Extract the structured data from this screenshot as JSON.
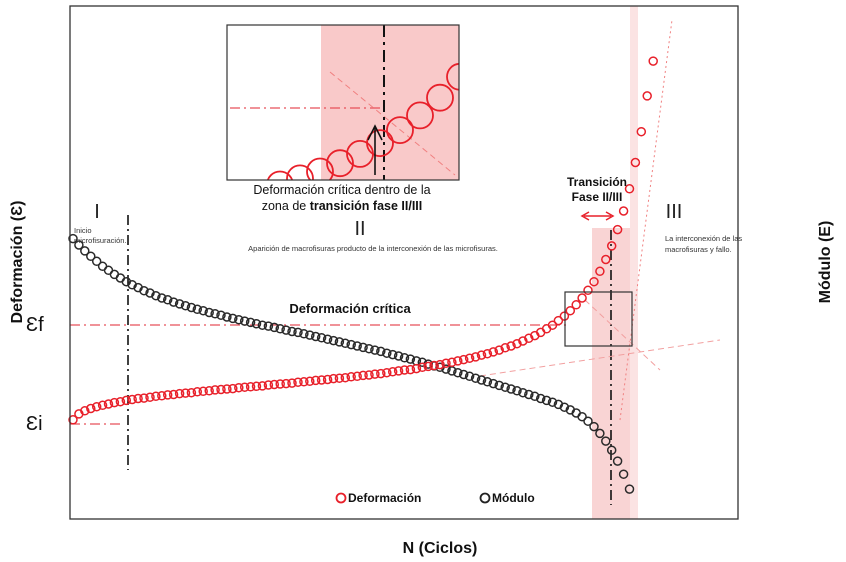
{
  "chart_data": {
    "type": "scatter",
    "xlabel": "N (Ciclos)",
    "ylabel_left": "Deformación (Ɛ)",
    "ylabel_right": "Módulo (E)",
    "x_range": [
      0,
      100
    ],
    "y_range": [
      0,
      100
    ],
    "eps_f_label": "Ɛf",
    "eps_i_label": "Ɛi",
    "eps_f_level": 60,
    "eps_i_level": 25,
    "critical_strain_label": "Deformación crítica",
    "phases": [
      {
        "numeral": "I",
        "note": "Inicio\nmicrofisuración."
      },
      {
        "numeral": "II",
        "note": "Aparición de macrofisuras producto de la interconexión de las microfisuras."
      },
      {
        "numeral": "III",
        "note": "La interconexión de las\nmacrofisuras y fallo."
      }
    ],
    "transition_label": "Transición\nFase II/III",
    "inset_caption_lines": [
      [
        "Deformación crítica dentro de la",
        ""
      ],
      [
        "zona de ",
        "transición fase II/III"
      ]
    ],
    "legend": [
      "Deformación",
      "Módulo"
    ],
    "colors": {
      "deformacion": "#e8202a",
      "modulo": "#2a2a2a",
      "zone": "#f9c9c9"
    },
    "series": [
      {
        "name": "Deformación",
        "points": [
          [
            0.0,
            18.8
          ],
          [
            1.0,
            20.1
          ],
          [
            2.0,
            20.8
          ],
          [
            3.0,
            21.3
          ],
          [
            4.0,
            21.7
          ],
          [
            5.0,
            22.0
          ],
          [
            6.0,
            22.3
          ],
          [
            7.0,
            22.6
          ],
          [
            8.0,
            22.8
          ],
          [
            9.0,
            23.1
          ],
          [
            10.0,
            23.3
          ],
          [
            11.0,
            23.5
          ],
          [
            12.0,
            23.6
          ],
          [
            13.0,
            23.8
          ],
          [
            14.0,
            24.0
          ],
          [
            15.0,
            24.1
          ],
          [
            16.0,
            24.3
          ],
          [
            17.0,
            24.4
          ],
          [
            18.0,
            24.6
          ],
          [
            19.0,
            24.7
          ],
          [
            20.0,
            24.8
          ],
          [
            21.0,
            25.0
          ],
          [
            22.0,
            25.1
          ],
          [
            23.0,
            25.2
          ],
          [
            24.0,
            25.4
          ],
          [
            25.0,
            25.5
          ],
          [
            26.0,
            25.6
          ],
          [
            27.0,
            25.7
          ],
          [
            28.0,
            25.9
          ],
          [
            29.0,
            26.0
          ],
          [
            30.0,
            26.1
          ],
          [
            31.0,
            26.2
          ],
          [
            32.0,
            26.3
          ],
          [
            33.0,
            26.5
          ],
          [
            34.0,
            26.6
          ],
          [
            35.0,
            26.7
          ],
          [
            36.0,
            26.8
          ],
          [
            37.0,
            26.9
          ],
          [
            38.0,
            27.1
          ],
          [
            39.0,
            27.2
          ],
          [
            40.0,
            27.3
          ],
          [
            41.0,
            27.5
          ],
          [
            42.0,
            27.6
          ],
          [
            43.0,
            27.7
          ],
          [
            44.0,
            27.9
          ],
          [
            45.0,
            28.0
          ],
          [
            46.0,
            28.1
          ],
          [
            47.0,
            28.3
          ],
          [
            48.0,
            28.4
          ],
          [
            49.0,
            28.6
          ],
          [
            50.0,
            28.7
          ],
          [
            51.0,
            28.9
          ],
          [
            52.0,
            29.0
          ],
          [
            53.0,
            29.2
          ],
          [
            54.0,
            29.4
          ],
          [
            55.0,
            29.6
          ],
          [
            56.0,
            29.8
          ],
          [
            57.0,
            29.9
          ],
          [
            58.0,
            30.1
          ],
          [
            59.0,
            30.4
          ],
          [
            60.0,
            30.6
          ],
          [
            61.0,
            30.8
          ],
          [
            62.0,
            31.0
          ],
          [
            63.0,
            31.3
          ],
          [
            64.0,
            31.5
          ],
          [
            65.0,
            31.8
          ],
          [
            66.0,
            32.1
          ],
          [
            67.0,
            32.4
          ],
          [
            68.0,
            32.7
          ],
          [
            69.0,
            33.1
          ],
          [
            70.0,
            33.4
          ],
          [
            71.0,
            33.8
          ],
          [
            72.0,
            34.2
          ],
          [
            73.0,
            34.7
          ],
          [
            74.0,
            35.1
          ],
          [
            75.0,
            35.6
          ],
          [
            76.0,
            36.2
          ],
          [
            77.0,
            36.8
          ],
          [
            78.0,
            37.4
          ],
          [
            79.0,
            38.1
          ],
          [
            80.0,
            38.9
          ],
          [
            81.0,
            39.7
          ],
          [
            82.0,
            40.7
          ],
          [
            83.0,
            41.7
          ],
          [
            84.0,
            42.9
          ],
          [
            85.0,
            44.2
          ],
          [
            86.0,
            45.7
          ],
          [
            87.0,
            47.4
          ],
          [
            88.0,
            49.3
          ],
          [
            89.0,
            51.6
          ],
          [
            90.0,
            54.2
          ],
          [
            91.0,
            57.2
          ],
          [
            92.0,
            60.8
          ],
          [
            93.0,
            64.9
          ],
          [
            94.0,
            69.8
          ],
          [
            95.0,
            75.6
          ],
          [
            96.0,
            82.4
          ],
          [
            97.0,
            90.3
          ],
          [
            98.0,
            98.0
          ]
        ]
      },
      {
        "name": "Módulo",
        "points": [
          [
            0.0,
            58.8
          ],
          [
            1.0,
            57.4
          ],
          [
            2.0,
            56.1
          ],
          [
            3.0,
            54.9
          ],
          [
            4.0,
            53.8
          ],
          [
            5.0,
            52.7
          ],
          [
            6.0,
            51.8
          ],
          [
            7.0,
            50.9
          ],
          [
            8.0,
            50.1
          ],
          [
            9.0,
            49.3
          ],
          [
            10.0,
            48.6
          ],
          [
            11.0,
            48.0
          ],
          [
            12.0,
            47.3
          ],
          [
            13.0,
            46.8
          ],
          [
            14.0,
            46.2
          ],
          [
            15.0,
            45.7
          ],
          [
            16.0,
            45.3
          ],
          [
            17.0,
            44.8
          ],
          [
            18.0,
            44.4
          ],
          [
            19.0,
            44.0
          ],
          [
            20.0,
            43.6
          ],
          [
            21.0,
            43.2
          ],
          [
            22.0,
            42.9
          ],
          [
            23.0,
            42.5
          ],
          [
            24.0,
            42.2
          ],
          [
            25.0,
            41.9
          ],
          [
            26.0,
            41.5
          ],
          [
            27.0,
            41.2
          ],
          [
            28.0,
            40.9
          ],
          [
            29.0,
            40.6
          ],
          [
            30.0,
            40.3
          ],
          [
            31.0,
            40.0
          ],
          [
            32.0,
            39.7
          ],
          [
            33.0,
            39.5
          ],
          [
            34.0,
            39.2
          ],
          [
            35.0,
            38.9
          ],
          [
            36.0,
            38.6
          ],
          [
            37.0,
            38.3
          ],
          [
            38.0,
            38.1
          ],
          [
            39.0,
            37.8
          ],
          [
            40.0,
            37.5
          ],
          [
            41.0,
            37.2
          ],
          [
            42.0,
            36.9
          ],
          [
            43.0,
            36.6
          ],
          [
            44.0,
            36.3
          ],
          [
            45.0,
            36.0
          ],
          [
            46.0,
            35.7
          ],
          [
            47.0,
            35.4
          ],
          [
            48.0,
            35.1
          ],
          [
            49.0,
            34.8
          ],
          [
            50.0,
            34.5
          ],
          [
            51.0,
            34.2
          ],
          [
            52.0,
            33.9
          ],
          [
            53.0,
            33.5
          ],
          [
            54.0,
            33.2
          ],
          [
            55.0,
            32.9
          ],
          [
            56.0,
            32.5
          ],
          [
            57.0,
            32.2
          ],
          [
            58.0,
            31.8
          ],
          [
            59.0,
            31.5
          ],
          [
            60.0,
            31.1
          ],
          [
            61.0,
            30.7
          ],
          [
            62.0,
            30.4
          ],
          [
            63.0,
            30.0
          ],
          [
            64.0,
            29.6
          ],
          [
            65.0,
            29.2
          ],
          [
            66.0,
            28.8
          ],
          [
            67.0,
            28.4
          ],
          [
            68.0,
            28.0
          ],
          [
            69.0,
            27.6
          ],
          [
            70.0,
            27.2
          ],
          [
            71.0,
            26.8
          ],
          [
            72.0,
            26.4
          ],
          [
            73.0,
            26.0
          ],
          [
            74.0,
            25.6
          ],
          [
            75.0,
            25.2
          ],
          [
            76.0,
            24.8
          ],
          [
            77.0,
            24.4
          ],
          [
            78.0,
            24.0
          ],
          [
            79.0,
            23.5
          ],
          [
            80.0,
            23.1
          ],
          [
            81.0,
            22.7
          ],
          [
            82.0,
            22.2
          ],
          [
            83.0,
            21.6
          ],
          [
            84.0,
            21.0
          ],
          [
            85.0,
            20.3
          ],
          [
            86.0,
            19.5
          ],
          [
            87.0,
            18.5
          ],
          [
            88.0,
            17.3
          ],
          [
            89.0,
            15.8
          ],
          [
            90.0,
            14.1
          ],
          [
            91.0,
            12.1
          ],
          [
            92.0,
            9.7
          ],
          [
            93.0,
            6.8
          ],
          [
            94.0,
            3.5
          ]
        ]
      }
    ]
  }
}
